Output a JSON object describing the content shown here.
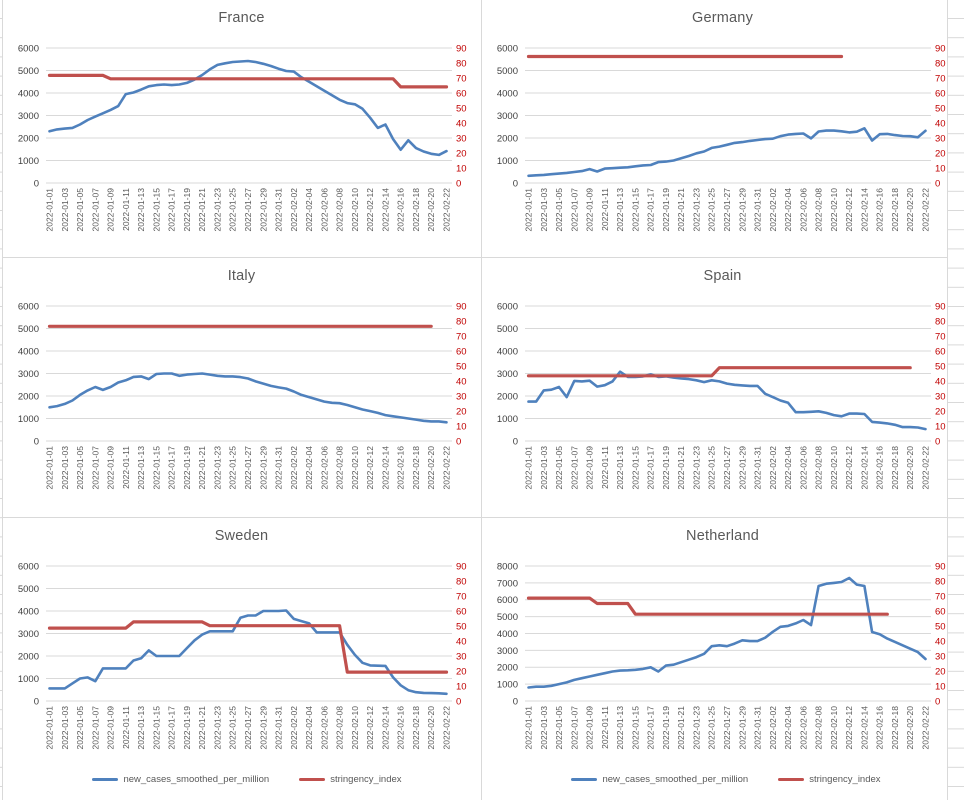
{
  "colors": {
    "cases_line": "#4F81BD",
    "stringency_line": "#C0504D",
    "left_axis_text": "#404040",
    "right_axis_text": "#C00000",
    "date_text": "#595959",
    "title_text": "#595959",
    "plot_gridline": "#D9D9D9",
    "sheet_gridline": "#D9D9D9"
  },
  "legend": {
    "cases": "new_cases_smoothed_per_million",
    "stringency": "stringency_index"
  },
  "x_axis": {
    "n_points": 53,
    "tick_every": 2,
    "tick_labels": [
      "2022-01-01",
      "2022-01-03",
      "2022-01-05",
      "2022-01-07",
      "2022-01-09",
      "2022-01-11",
      "2022-01-13",
      "2022-01-15",
      "2022-01-17",
      "2022-01-19",
      "2022-01-21",
      "2022-01-23",
      "2022-01-25",
      "2022-01-27",
      "2022-01-29",
      "2022-01-31",
      "2022-02-02",
      "2022-02-04",
      "2022-02-06",
      "2022-02-08",
      "2022-02-10",
      "2022-02-12",
      "2022-02-14",
      "2022-02-16",
      "2022-02-18",
      "2022-02-20",
      "2022-02-22"
    ]
  },
  "chart_data": [
    {
      "type": "line",
      "title": "France",
      "left_axis": {
        "min": 0,
        "max": 6000,
        "step": 1000
      },
      "right_axis": {
        "min": 0,
        "max": 90,
        "step": 10
      },
      "has_legend": false,
      "series": [
        {
          "name": "new_cases_smoothed_per_million",
          "axis": "left",
          "values": [
            2300,
            2380,
            2420,
            2450,
            2600,
            2800,
            2950,
            3100,
            3250,
            3420,
            3950,
            4020,
            4150,
            4300,
            4350,
            4380,
            4350,
            4380,
            4450,
            4600,
            4800,
            5050,
            5250,
            5320,
            5380,
            5400,
            5420,
            5380,
            5300,
            5200,
            5080,
            4980,
            4950,
            4700,
            4500,
            4300,
            4100,
            3900,
            3700,
            3550,
            3500,
            3300,
            2900,
            2450,
            2600,
            1950,
            1480,
            1900,
            1550,
            1400,
            1300,
            1250,
            1420
          ]
        },
        {
          "name": "stringency_index",
          "axis": "right",
          "values": [
            71.7,
            71.7,
            71.7,
            71.7,
            71.7,
            71.7,
            71.7,
            71.7,
            69.5,
            69.5,
            69.5,
            69.5,
            69.5,
            69.5,
            69.5,
            69.5,
            69.5,
            69.5,
            69.5,
            69.5,
            69.5,
            69.5,
            69.5,
            69.5,
            69.5,
            69.5,
            69.5,
            69.5,
            69.5,
            69.5,
            69.5,
            69.5,
            69.5,
            69.5,
            69.5,
            69.5,
            69.5,
            69.5,
            69.5,
            69.5,
            69.5,
            69.5,
            69.5,
            69.5,
            69.5,
            69.5,
            64.1,
            64.1,
            64.1,
            64.1,
            64.1,
            64.1,
            64.1
          ]
        }
      ]
    },
    {
      "type": "line",
      "title": "Germany",
      "left_axis": {
        "min": 0,
        "max": 6000,
        "step": 1000
      },
      "right_axis": {
        "min": 0,
        "max": 90,
        "step": 10
      },
      "has_legend": false,
      "series": [
        {
          "name": "new_cases_smoothed_per_million",
          "axis": "left",
          "values": [
            320,
            340,
            360,
            390,
            420,
            450,
            490,
            530,
            620,
            510,
            640,
            660,
            680,
            700,
            740,
            780,
            800,
            930,
            950,
            1000,
            1100,
            1200,
            1320,
            1400,
            1560,
            1620,
            1700,
            1780,
            1820,
            1870,
            1910,
            1950,
            1970,
            2080,
            2150,
            2180,
            2200,
            1980,
            2290,
            2330,
            2330,
            2300,
            2250,
            2280,
            2430,
            1890,
            2170,
            2180,
            2130,
            2090,
            2080,
            2030,
            2320
          ]
        },
        {
          "name": "stringency_index",
          "axis": "right",
          "values": [
            84.3,
            84.3,
            84.3,
            84.3,
            84.3,
            84.3,
            84.3,
            84.3,
            84.3,
            84.3,
            84.3,
            84.3,
            84.3,
            84.3,
            84.3,
            84.3,
            84.3,
            84.3,
            84.3,
            84.3,
            84.3,
            84.3,
            84.3,
            84.3,
            84.3,
            84.3,
            84.3,
            84.3,
            84.3,
            84.3,
            84.3,
            84.3,
            84.3,
            84.3,
            84.3,
            84.3,
            84.3,
            84.3,
            84.3,
            84.3,
            84.3,
            84.3,
            null,
            null,
            null,
            null,
            null,
            null,
            null,
            null,
            null,
            null,
            null
          ]
        }
      ]
    },
    {
      "type": "line",
      "title": "Italy",
      "left_axis": {
        "min": 0,
        "max": 6000,
        "step": 1000
      },
      "right_axis": {
        "min": 0,
        "max": 90,
        "step": 10
      },
      "has_legend": false,
      "series": [
        {
          "name": "new_cases_smoothed_per_million",
          "axis": "left",
          "values": [
            1500,
            1550,
            1650,
            1800,
            2050,
            2250,
            2400,
            2270,
            2400,
            2600,
            2700,
            2850,
            2870,
            2750,
            2980,
            3000,
            3000,
            2900,
            2950,
            2980,
            3000,
            2950,
            2900,
            2870,
            2870,
            2840,
            2780,
            2650,
            2550,
            2450,
            2380,
            2330,
            2200,
            2050,
            1950,
            1850,
            1750,
            1700,
            1680,
            1600,
            1500,
            1400,
            1330,
            1250,
            1150,
            1100,
            1050,
            1000,
            950,
            900,
            870,
            870,
            830
          ]
        },
        {
          "name": "stringency_index",
          "axis": "right",
          "values": [
            76.5,
            76.5,
            76.5,
            76.5,
            76.5,
            76.5,
            76.5,
            76.5,
            76.5,
            76.5,
            76.5,
            76.5,
            76.5,
            76.5,
            76.5,
            76.5,
            76.5,
            76.5,
            76.5,
            76.5,
            76.5,
            76.5,
            76.5,
            76.5,
            76.5,
            76.5,
            76.5,
            76.5,
            76.5,
            76.5,
            76.5,
            76.5,
            76.5,
            76.5,
            76.5,
            76.5,
            76.5,
            76.5,
            76.5,
            76.5,
            76.5,
            76.5,
            76.5,
            76.5,
            76.5,
            76.5,
            76.5,
            76.5,
            76.5,
            76.5,
            76.5,
            null,
            null
          ]
        }
      ]
    },
    {
      "type": "line",
      "title": "Spain",
      "left_axis": {
        "min": 0,
        "max": 6000,
        "step": 1000
      },
      "right_axis": {
        "min": 0,
        "max": 90,
        "step": 10
      },
      "has_legend": false,
      "series": [
        {
          "name": "new_cases_smoothed_per_million",
          "axis": "left",
          "values": [
            1750,
            1750,
            2250,
            2280,
            2400,
            1950,
            2670,
            2650,
            2680,
            2420,
            2480,
            2650,
            3080,
            2850,
            2850,
            2870,
            2960,
            2850,
            2870,
            2820,
            2780,
            2750,
            2700,
            2620,
            2700,
            2650,
            2550,
            2500,
            2470,
            2450,
            2450,
            2100,
            1950,
            1800,
            1700,
            1280,
            1280,
            1300,
            1320,
            1250,
            1150,
            1100,
            1220,
            1220,
            1200,
            850,
            820,
            780,
            720,
            620,
            620,
            600,
            530
          ]
        },
        {
          "name": "stringency_index",
          "axis": "right",
          "values": [
            43.5,
            43.5,
            43.5,
            43.5,
            43.5,
            43.5,
            43.5,
            43.5,
            43.5,
            43.5,
            43.5,
            43.5,
            43.5,
            43.5,
            43.5,
            43.5,
            43.5,
            43.5,
            43.5,
            43.5,
            43.5,
            43.5,
            43.5,
            43.5,
            43.5,
            48.9,
            48.9,
            48.9,
            48.9,
            48.9,
            48.9,
            48.9,
            48.9,
            48.9,
            48.9,
            48.9,
            48.9,
            48.9,
            48.9,
            48.9,
            48.9,
            48.9,
            48.9,
            48.9,
            48.9,
            48.9,
            48.9,
            48.9,
            48.9,
            48.9,
            48.9,
            null,
            null
          ]
        }
      ]
    },
    {
      "type": "line",
      "title": "Sweden",
      "left_axis": {
        "min": 0,
        "max": 6000,
        "step": 1000
      },
      "right_axis": {
        "min": 0,
        "max": 90,
        "step": 10
      },
      "has_legend": true,
      "series": [
        {
          "name": "new_cases_smoothed_per_million",
          "axis": "left",
          "values": [
            560,
            560,
            560,
            780,
            1000,
            1050,
            880,
            1450,
            1450,
            1450,
            1450,
            1800,
            1900,
            2250,
            2000,
            2000,
            2000,
            2000,
            2350,
            2700,
            2950,
            3100,
            3100,
            3100,
            3100,
            3700,
            3800,
            3800,
            4000,
            4000,
            4000,
            4020,
            3650,
            3550,
            3450,
            3050,
            3050,
            3050,
            3050,
            2500,
            2050,
            1700,
            1580,
            1570,
            1560,
            1050,
            700,
            480,
            390,
            360,
            350,
            340,
            320
          ]
        },
        {
          "name": "stringency_index",
          "axis": "right",
          "values": [
            48.6,
            48.6,
            48.6,
            48.6,
            48.6,
            48.6,
            48.6,
            48.6,
            48.6,
            48.6,
            48.6,
            52.7,
            52.7,
            52.7,
            52.7,
            52.7,
            52.7,
            52.7,
            52.7,
            52.7,
            52.7,
            50.2,
            50.2,
            50.2,
            50.2,
            50.2,
            50.2,
            50.2,
            50.2,
            50.2,
            50.2,
            50.2,
            50.2,
            50.2,
            50.2,
            50.2,
            50.2,
            50.2,
            50.2,
            19.3,
            19.3,
            19.3,
            19.3,
            19.3,
            19.3,
            19.3,
            19.3,
            19.3,
            19.3,
            19.3,
            19.3,
            19.3,
            19.3
          ]
        }
      ]
    },
    {
      "type": "line",
      "title": "Netherland",
      "left_axis": {
        "min": 0,
        "max": 8000,
        "step": 1000
      },
      "right_axis": {
        "min": 0,
        "max": 90,
        "step": 10
      },
      "has_legend": true,
      "series": [
        {
          "name": "new_cases_smoothed_per_million",
          "axis": "left",
          "values": [
            800,
            850,
            850,
            900,
            1000,
            1100,
            1250,
            1350,
            1450,
            1550,
            1650,
            1750,
            1800,
            1820,
            1850,
            1900,
            2000,
            1750,
            2100,
            2150,
            2300,
            2450,
            2600,
            2800,
            3250,
            3300,
            3250,
            3400,
            3600,
            3550,
            3550,
            3750,
            4100,
            4400,
            4450,
            4600,
            4800,
            4500,
            6815,
            6950,
            7000,
            7050,
            7290,
            6900,
            6815,
            4090,
            3950,
            3700,
            3500,
            3300,
            3100,
            2900,
            2490
          ]
        },
        {
          "name": "stringency_index",
          "axis": "right",
          "values": [
            68.6,
            68.6,
            68.6,
            68.6,
            68.6,
            68.6,
            68.6,
            68.6,
            68.6,
            65.0,
            65.0,
            65.0,
            65.0,
            65.0,
            57.9,
            57.9,
            57.9,
            57.9,
            57.9,
            57.9,
            57.9,
            57.9,
            57.9,
            57.9,
            57.9,
            57.9,
            57.9,
            57.9,
            57.9,
            57.9,
            57.9,
            57.9,
            57.9,
            57.9,
            57.9,
            57.9,
            57.9,
            57.9,
            57.9,
            57.9,
            57.9,
            57.9,
            57.9,
            57.9,
            57.9,
            57.9,
            57.9,
            57.9,
            null,
            null,
            null,
            null,
            null
          ]
        }
      ]
    }
  ]
}
